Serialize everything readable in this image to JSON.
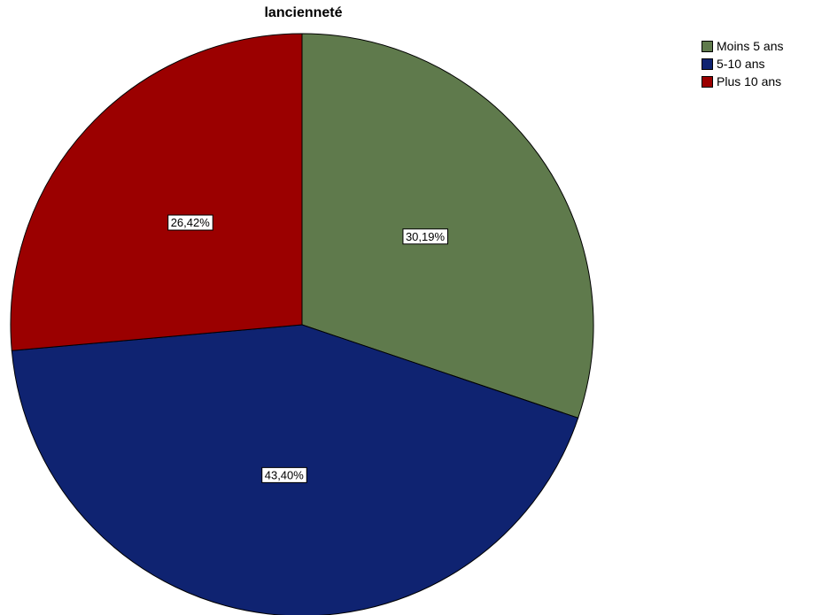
{
  "chart_data": {
    "type": "pie",
    "title": "lancienneté",
    "slices": [
      {
        "name": "Moins 5 ans",
        "value": 30.19,
        "label": "30,19%",
        "color": "#5f7a4c"
      },
      {
        "name": "5-10 ans",
        "value": 43.4,
        "label": "43,40%",
        "color": "#0f2371"
      },
      {
        "name": "Plus 10 ans",
        "value": 26.42,
        "label": "26,42%",
        "color": "#9b0000"
      }
    ],
    "start_angle": "12 o'clock",
    "direction": "clockwise",
    "legend_position": "top-right"
  }
}
